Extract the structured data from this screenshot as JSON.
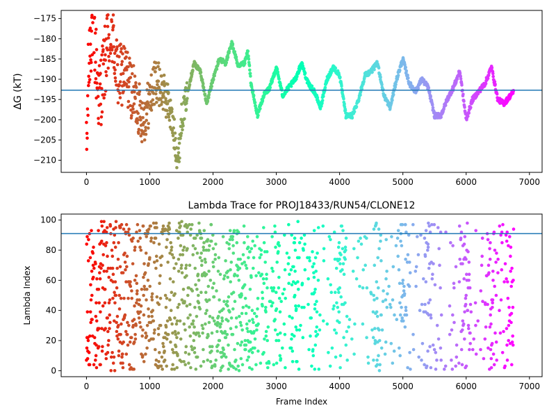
{
  "chart_data": [
    {
      "type": "scatter",
      "title": "",
      "xlabel": "",
      "ylabel": "ΔG (kT)",
      "xlim": [
        -400,
        7200
      ],
      "ylim": [
        -213,
        -173
      ],
      "xticks": [
        0,
        1000,
        2000,
        3000,
        4000,
        5000,
        6000,
        7000
      ],
      "yticks": [
        -210,
        -205,
        -200,
        -195,
        -190,
        -185,
        -180,
        -175
      ],
      "hline": -192.7,
      "hline_color": "#1f77b4",
      "colormap": "rainbow",
      "x_max_frame": 6750,
      "series_summary": [
        {
          "x": 0,
          "y": -210
        },
        {
          "x": 30,
          "y": -190
        },
        {
          "x": 60,
          "y": -180
        },
        {
          "x": 100,
          "y": -176
        },
        {
          "x": 200,
          "y": -195
        },
        {
          "x": 300,
          "y": -185
        },
        {
          "x": 400,
          "y": -178
        },
        {
          "x": 500,
          "y": -190
        },
        {
          "x": 600,
          "y": -188
        },
        {
          "x": 700,
          "y": -192
        },
        {
          "x": 800,
          "y": -196
        },
        {
          "x": 900,
          "y": -200
        },
        {
          "x": 1000,
          "y": -195
        },
        {
          "x": 1100,
          "y": -190
        },
        {
          "x": 1200,
          "y": -193
        },
        {
          "x": 1300,
          "y": -196
        },
        {
          "x": 1400,
          "y": -205
        },
        {
          "x": 1450,
          "y": -210
        },
        {
          "x": 1500,
          "y": -200
        },
        {
          "x": 1600,
          "y": -193
        },
        {
          "x": 1700,
          "y": -186
        },
        {
          "x": 1800,
          "y": -188
        },
        {
          "x": 1900,
          "y": -196
        },
        {
          "x": 2000,
          "y": -190
        },
        {
          "x": 2100,
          "y": -185
        },
        {
          "x": 2200,
          "y": -186
        },
        {
          "x": 2300,
          "y": -181
        },
        {
          "x": 2400,
          "y": -187
        },
        {
          "x": 2500,
          "y": -186
        },
        {
          "x": 2550,
          "y": -183
        },
        {
          "x": 2600,
          "y": -191
        },
        {
          "x": 2700,
          "y": -199
        },
        {
          "x": 2800,
          "y": -194
        },
        {
          "x": 2900,
          "y": -192
        },
        {
          "x": 3000,
          "y": -187
        },
        {
          "x": 3100,
          "y": -194
        },
        {
          "x": 3200,
          "y": -192
        },
        {
          "x": 3300,
          "y": -190
        },
        {
          "x": 3400,
          "y": -186
        },
        {
          "x": 3500,
          "y": -191
        },
        {
          "x": 3600,
          "y": -193
        },
        {
          "x": 3700,
          "y": -197
        },
        {
          "x": 3800,
          "y": -190
        },
        {
          "x": 3900,
          "y": -187
        },
        {
          "x": 4000,
          "y": -189
        },
        {
          "x": 4100,
          "y": -199
        },
        {
          "x": 4200,
          "y": -199
        },
        {
          "x": 4300,
          "y": -195
        },
        {
          "x": 4400,
          "y": -189
        },
        {
          "x": 4500,
          "y": -188
        },
        {
          "x": 4600,
          "y": -186
        },
        {
          "x": 4700,
          "y": -194
        },
        {
          "x": 4800,
          "y": -197
        },
        {
          "x": 4900,
          "y": -190
        },
        {
          "x": 5000,
          "y": -185
        },
        {
          "x": 5100,
          "y": -191
        },
        {
          "x": 5200,
          "y": -193
        },
        {
          "x": 5300,
          "y": -190
        },
        {
          "x": 5400,
          "y": -192
        },
        {
          "x": 5500,
          "y": -199
        },
        {
          "x": 5600,
          "y": -199
        },
        {
          "x": 5700,
          "y": -195
        },
        {
          "x": 5800,
          "y": -192
        },
        {
          "x": 5900,
          "y": -188
        },
        {
          "x": 6000,
          "y": -200
        },
        {
          "x": 6100,
          "y": -195
        },
        {
          "x": 6200,
          "y": -193
        },
        {
          "x": 6300,
          "y": -191
        },
        {
          "x": 6400,
          "y": -187
        },
        {
          "x": 6500,
          "y": -195
        },
        {
          "x": 6600,
          "y": -196
        },
        {
          "x": 6700,
          "y": -194
        },
        {
          "x": 6750,
          "y": -193
        }
      ]
    },
    {
      "type": "scatter",
      "title": "Lambda Trace for PROJ18433/RUN54/CLONE12",
      "xlabel": "Frame Index",
      "ylabel": "Lambda Index",
      "xlim": [
        -400,
        7200
      ],
      "ylim": [
        -4,
        104
      ],
      "xticks": [
        0,
        1000,
        2000,
        3000,
        4000,
        5000,
        6000,
        7000
      ],
      "yticks": [
        0,
        20,
        40,
        60,
        80,
        100
      ],
      "hline": 91,
      "hline_color": "#1f77b4",
      "colormap": "rainbow",
      "x_max_frame": 6750,
      "lambda_range": [
        0,
        99
      ],
      "high_density_columns": [
        2600,
        2800,
        3000,
        3300,
        3600,
        4000,
        4600,
        5000,
        5400,
        6000,
        6400,
        6700
      ]
    }
  ]
}
